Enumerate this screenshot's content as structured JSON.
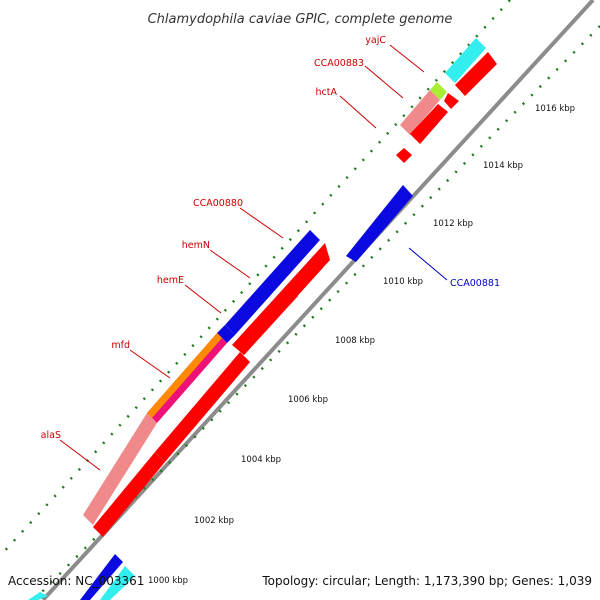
{
  "title": "Chlamydophila caviae GPIC, complete genome",
  "footer": {
    "accession": "Accession: NC_003361",
    "summary": "Topology: circular; Length: 1,173,390 bp; Genes: 1,039"
  },
  "colors": {
    "backbone": "#8c8c8c",
    "tick": "#1e7a1e",
    "red": "#ff0000",
    "blue": "#0a0ae0",
    "cyan": "#33eeee",
    "salmon": "#f08a8a",
    "lime": "#aaee33",
    "orange": "#ff8a00",
    "magenta": "#ee1177",
    "label_red": "#cc0000",
    "label_blue": "#0000cc"
  },
  "kbp_labels": [
    "1000 kbp",
    "1002 kbp",
    "1004 kbp",
    "1006 kbp",
    "1008 kbp",
    "1010 kbp",
    "1012 kbp",
    "1014 kbp",
    "1016 kbp"
  ],
  "genes": [
    {
      "name": "alaS",
      "color": "label_red"
    },
    {
      "name": "mfd",
      "color": "label_red"
    },
    {
      "name": "hemE",
      "color": "label_red"
    },
    {
      "name": "hemN",
      "color": "label_red"
    },
    {
      "name": "CCA00880",
      "color": "label_red"
    },
    {
      "name": "hctA",
      "color": "label_red"
    },
    {
      "name": "CCA00883",
      "color": "label_red"
    },
    {
      "name": "yajC",
      "color": "label_red"
    },
    {
      "name": "CCA00881",
      "color": "label_blue"
    }
  ]
}
